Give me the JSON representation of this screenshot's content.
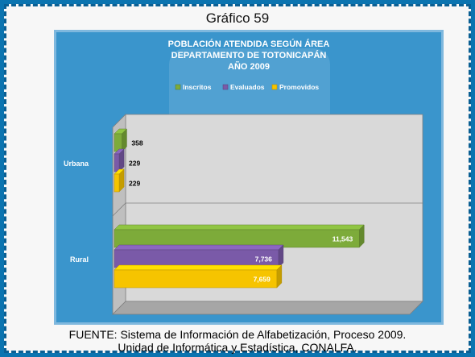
{
  "figure": {
    "label": "Gráfico 59"
  },
  "chart_data": {
    "type": "bar",
    "orientation": "horizontal",
    "title_lines": [
      "POBLACIÓN ATENDIDA SEGÚN ÁREA",
      "DEPARTAMENTO DE TOTONICAPÁN",
      "AÑO 2009"
    ],
    "categories": [
      "Urbana",
      "Rural"
    ],
    "series": [
      {
        "name": "Inscritos",
        "color": "#7dab3a",
        "values": [
          358,
          11543
        ],
        "labels": [
          "358",
          "11,543"
        ]
      },
      {
        "name": "Evaluados",
        "color": "#7a5aa8",
        "values": [
          229,
          7736
        ],
        "labels": [
          "229",
          "7,736"
        ]
      },
      {
        "name": "Promovidos",
        "color": "#f6c400",
        "values": [
          229,
          7659
        ],
        "labels": [
          "229",
          "7,659"
        ]
      }
    ],
    "legend_position": "top",
    "grid": false,
    "xlim": [
      0,
      14000
    ]
  },
  "footer": {
    "line1": "FUENTE: Sistema de Información de Alfabetización, Proceso 2009.",
    "line2": "Unidad de Informática y Estadística, CONALFA."
  },
  "colors": {
    "frame": "#0b74b0",
    "panel": "#3a95cc",
    "plot_area": "#d9d9d9"
  }
}
